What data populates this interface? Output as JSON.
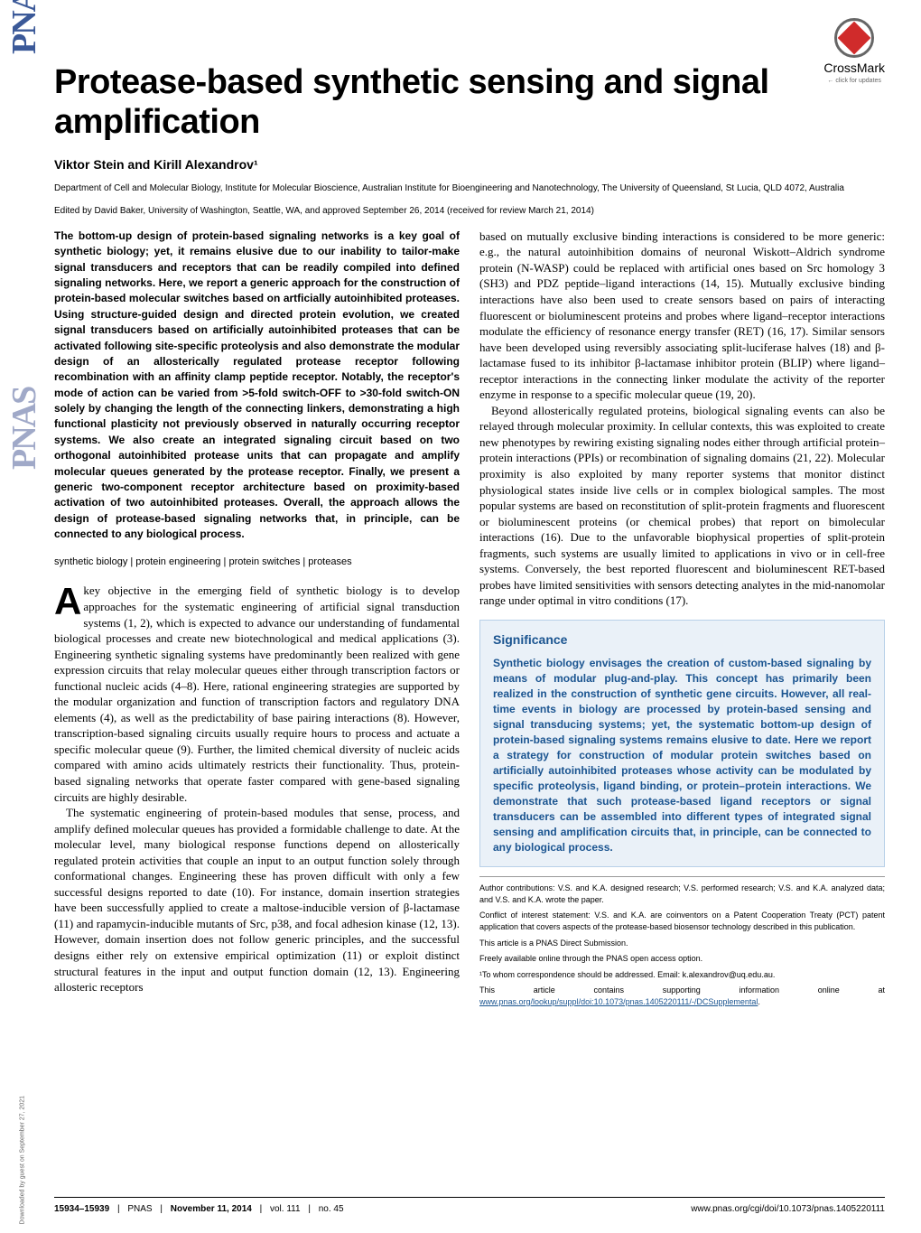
{
  "crossmark": {
    "label": "CrossMark",
    "sub": "← click for updates"
  },
  "title": "Protease-based synthetic sensing and signal amplification",
  "authors": "Viktor Stein and Kirill Alexandrov¹",
  "affiliation": "Department of Cell and Molecular Biology, Institute for Molecular Bioscience, Australian Institute for Bioengineering and Nanotechnology, The University of Queensland, St Lucia, QLD 4072, Australia",
  "edited": "Edited by David Baker, University of Washington, Seattle, WA, and approved September 26, 2014 (received for review March 21, 2014)",
  "abstract": "The bottom-up design of protein-based signaling networks is a key goal of synthetic biology; yet, it remains elusive due to our inability to tailor-make signal transducers and receptors that can be readily compiled into defined signaling networks. Here, we report a generic approach for the construction of protein-based molecular switches based on artficially autoinhibited proteases. Using structure-guided design and directed protein evolution, we created signal transducers based on artificially autoinhibited proteases that can be activated following site-specific proteolysis and also demonstrate the modular design of an allosterically regulated protease receptor following recombination with an affinity clamp peptide receptor. Notably, the receptor's mode of action can be varied from >5-fold switch-OFF to >30-fold switch-ON solely by changing the length of the connecting linkers, demonstrating a high functional plasticity not previously observed in naturally occurring receptor systems. We also create an integrated signaling circuit based on two orthogonal autoinhibited protease units that can propagate and amplify molecular queues generated by the protease receptor. Finally, we present a generic two-component receptor architecture based on proximity-based activation of two autoinhibited proteases. Overall, the approach allows the design of protease-based signaling networks that, in principle, can be connected to any biological process.",
  "keywords": "synthetic biology | protein engineering | protein switches | proteases",
  "dropcap": "A",
  "para1_first": "key objective in the emerging field of synthetic biology is to develop approaches for the systematic engineering of artificial signal transduction systems (1, 2), which is expected to advance our understanding of fundamental biological processes and create new biotechnological and medical applications (3). Engineering synthetic signaling systems have predominantly been realized with gene expression circuits that relay molecular queues either through transcription factors or functional nucleic acids (4–8). Here, rational engineering strategies are supported by the modular organization and function of transcription factors and regulatory DNA elements (4), as well as the predictability of base pairing interactions (8). However, transcription-based signaling circuits usually require hours to process and actuate a specific molecular queue (9). Further, the limited chemical diversity of nucleic acids compared with amino acids ultimately restricts their functionality. Thus, protein-based signaling networks that operate faster compared with gene-based signaling circuits are highly desirable.",
  "para2": "The systematic engineering of protein-based modules that sense, process, and amplify defined molecular queues has provided a formidable challenge to date. At the molecular level, many biological response functions depend on allosterically regulated protein activities that couple an input to an output function solely through conformational changes. Engineering these has proven difficult with only a few successful designs reported to date (10). For instance, domain insertion strategies have been successfully applied to create a maltose-inducible version of β-lactamase (11) and rapamycin-inducible mutants of Src, p38, and focal adhesion kinase (12, 13). However, domain insertion does not follow generic principles, and the successful designs either rely on extensive empirical optimization (11) or exploit distinct structural features in the input and output function domain (12, 13). Engineering allosteric receptors",
  "col2_p1": "based on mutually exclusive binding interactions is considered to be more generic: e.g., the natural autoinhibition domains of neuronal Wiskott–Aldrich syndrome protein (N-WASP) could be replaced with artificial ones based on Src homology 3 (SH3) and PDZ peptide–ligand interactions (14, 15). Mutually exclusive binding interactions have also been used to create sensors based on pairs of interacting fluorescent or bioluminescent proteins and probes where ligand–receptor interactions modulate the efficiency of resonance energy transfer (RET) (16, 17). Similar sensors have been developed using reversibly associating split-luciferase halves (18) and β-lactamase fused to its inhibitor β-lactamase inhibitor protein (BLIP) where ligand–receptor interactions in the connecting linker modulate the activity of the reporter enzyme in response to a specific molecular queue (19, 20).",
  "col2_p2": "Beyond allosterically regulated proteins, biological signaling events can also be relayed through molecular proximity. In cellular contexts, this was exploited to create new phenotypes by rewiring existing signaling nodes either through artificial protein–protein interactions (PPIs) or recombination of signaling domains (21, 22). Molecular proximity is also exploited by many reporter systems that monitor distinct physiological states inside live cells or in complex biological samples. The most popular systems are based on reconstitution of split-protein fragments and fluorescent or bioluminescent proteins (or chemical probes) that report on bimolecular interactions (16). Due to the unfavorable biophysical properties of split-protein fragments, such systems are usually limited to applications in vivo or in cell-free systems. Conversely, the best reported fluorescent and bioluminescent RET-based probes have limited sensitivities with sensors detecting analytes in the mid-nanomolar range under optimal in vitro conditions (17).",
  "significance": {
    "heading": "Significance",
    "text": "Synthetic biology envisages the creation of custom-based signaling by means of modular plug-and-play. This concept has primarily been realized in the construction of synthetic gene circuits. However, all real-time events in biology are processed by protein-based sensing and signal transducing systems; yet, the systematic bottom-up design of protein-based signaling systems remains elusive to date. Here we report a strategy for construction of modular protein switches based on artificially autoinhibited proteases whose activity can be modulated by specific proteolysis, ligand binding, or protein–protein interactions. We demonstrate that such protease-based ligand receptors or signal transducers can be assembled into different types of integrated signal sensing and amplification circuits that, in principle, can be connected to any biological process."
  },
  "footnotes": {
    "contributions": "Author contributions: V.S. and K.A. designed research; V.S. performed research; V.S. and K.A. analyzed data; and V.S. and K.A. wrote the paper.",
    "conflict": "Conflict of interest statement: V.S. and K.A. are coinventors on a Patent Cooperation Treaty (PCT) patent application that covers aspects of the protease-based biosensor technology described in this publication.",
    "submission": "This article is a PNAS Direct Submission.",
    "freely": "Freely available online through the PNAS open access option.",
    "corresp": "¹To whom correspondence should be addressed. Email: k.alexandrov@uq.edu.au.",
    "supp_pre": "This article contains supporting information online at ",
    "supp_link": "www.pnas.org/lookup/suppl/doi:10.1073/pnas.1405220111/-/DCSupplemental",
    "supp_post": "."
  },
  "footer": {
    "pages": "15934–15939",
    "journal": "PNAS",
    "date": "November 11, 2014",
    "vol": "vol. 111",
    "no": "no. 45",
    "url": "www.pnas.org/cgi/doi/10.1073/pnas.1405220111"
  },
  "download_note": "Downloaded by guest on September 27, 2021",
  "pnas_logo": "PNAS",
  "colors": {
    "link": "#1a5490",
    "sig_bg": "#eaf1f8",
    "sig_border": "#b8d0e8",
    "text": "#000000"
  },
  "typography": {
    "title_pt": 38,
    "author_pt": 14,
    "affil_pt": 10,
    "abstract_pt": 12,
    "body_pt": 13,
    "footnote_pt": 9
  }
}
